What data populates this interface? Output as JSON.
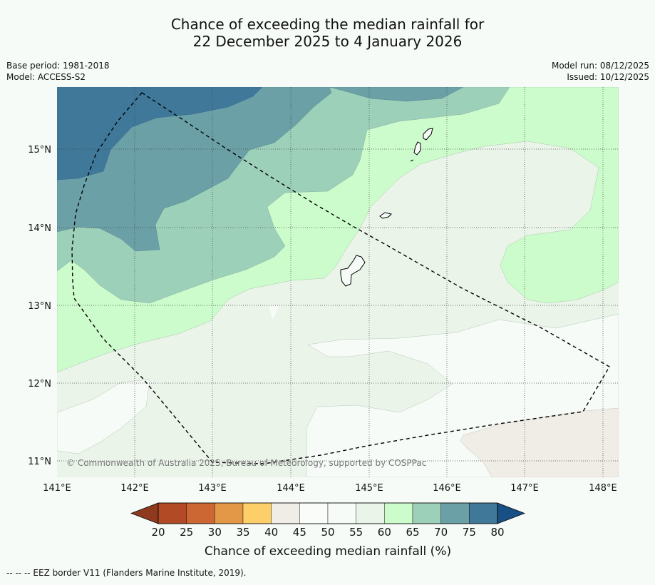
{
  "title_line1": "Chance of exceeding the median rainfall for",
  "title_line2": "22 December 2025 to 4 January 2026",
  "base_period": "Base period: 1981-2018",
  "model": "Model: ACCESS-S2",
  "model_run": "Model run: 08/12/2025",
  "issued": "Issued: 10/12/2025",
  "copyright": "© Commonwealth of Australia 2025, Bureau of Meteorology, supported by COSPPac",
  "lon_labels": [
    "141°E",
    "142°E",
    "143°E",
    "144°E",
    "145°E",
    "146°E",
    "147°E",
    "148°E"
  ],
  "lat_labels": [
    "15°N",
    "14°N",
    "13°N",
    "12°N",
    "11°N"
  ],
  "colorbar": {
    "title": "Chance of exceeding median rainfall (%)",
    "ticks": [
      "20",
      "25",
      "30",
      "35",
      "40",
      "45",
      "50",
      "55",
      "60",
      "65",
      "70",
      "75",
      "80"
    ],
    "colors": [
      "#8f3a1e",
      "#b34a26",
      "#cc6633",
      "#e39847",
      "#fccf69",
      "#f0ece6",
      "#fafcfa",
      "#f6fbf7",
      "#eaf4e9",
      "#ccfccc",
      "#9dd0b9",
      "#6aa0a6",
      "#3f7899",
      "#184f85"
    ]
  },
  "footer_legend": "--  --  -- EEZ border V11 (Flanders Marine Institute, 2019)."
}
